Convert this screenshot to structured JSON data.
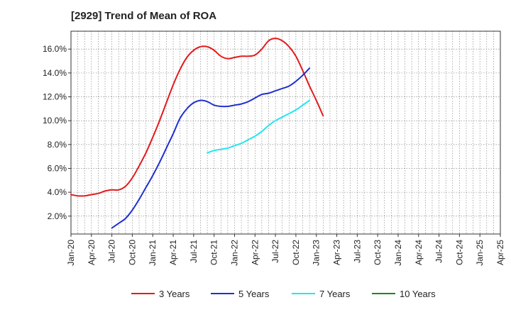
{
  "title": "[2929]  Trend of Mean of ROA",
  "chart_data": {
    "type": "line",
    "title": "[2929]  Trend of Mean of ROA",
    "xlabel": "",
    "ylabel": "",
    "x_ticks": [
      "Jan-20",
      "Apr-20",
      "Jul-20",
      "Oct-20",
      "Jan-21",
      "Apr-21",
      "Jul-21",
      "Oct-21",
      "Jan-22",
      "Apr-22",
      "Jul-22",
      "Oct-22",
      "Jan-23",
      "Apr-23",
      "Jul-23",
      "Oct-23",
      "Jan-24",
      "Apr-24",
      "Jul-24",
      "Oct-24",
      "Jan-25",
      "Apr-25"
    ],
    "y_ticks": [
      "2.0%",
      "4.0%",
      "6.0%",
      "8.0%",
      "10.0%",
      "12.0%",
      "14.0%",
      "16.0%"
    ],
    "ylim": [
      0.5,
      17.5
    ],
    "grid": true,
    "legend_position": "bottom",
    "series": [
      {
        "name": "3 Years",
        "color": "#e31a1c",
        "values": [
          3.8,
          3.7,
          3.7,
          3.8,
          3.9,
          4.1,
          4.2,
          4.2,
          4.5,
          5.2,
          6.2,
          7.3,
          8.6,
          10.0,
          11.5,
          13.0,
          14.3,
          15.3,
          15.9,
          16.2,
          16.2,
          15.9,
          15.4,
          15.2,
          15.3,
          15.4,
          15.4,
          15.5,
          16.0,
          16.7,
          16.9,
          16.7,
          16.2,
          15.4,
          14.2,
          12.9,
          11.7,
          10.4
        ],
        "start_index": 0
      },
      {
        "name": "5 Years",
        "color": "#1f2fd0",
        "values": [
          1.0,
          1.4,
          1.8,
          2.5,
          3.4,
          4.4,
          5.4,
          6.5,
          7.7,
          8.9,
          10.2,
          11.0,
          11.5,
          11.7,
          11.6,
          11.3,
          11.2,
          11.2,
          11.3,
          11.4,
          11.6,
          11.9,
          12.2,
          12.3,
          12.5,
          12.7,
          12.9,
          13.3,
          13.8,
          14.4
        ],
        "start_index": 6
      },
      {
        "name": "7 Years",
        "color": "#22e6f0",
        "values": [
          7.3,
          7.5,
          7.6,
          7.7,
          7.9,
          8.1,
          8.4,
          8.7,
          9.1,
          9.6,
          10.0,
          10.3,
          10.6,
          10.9,
          11.3,
          11.7
        ],
        "start_index": 20
      },
      {
        "name": "10 Years",
        "color": "#1a8a1a",
        "values": [],
        "start_index": 0
      }
    ]
  }
}
